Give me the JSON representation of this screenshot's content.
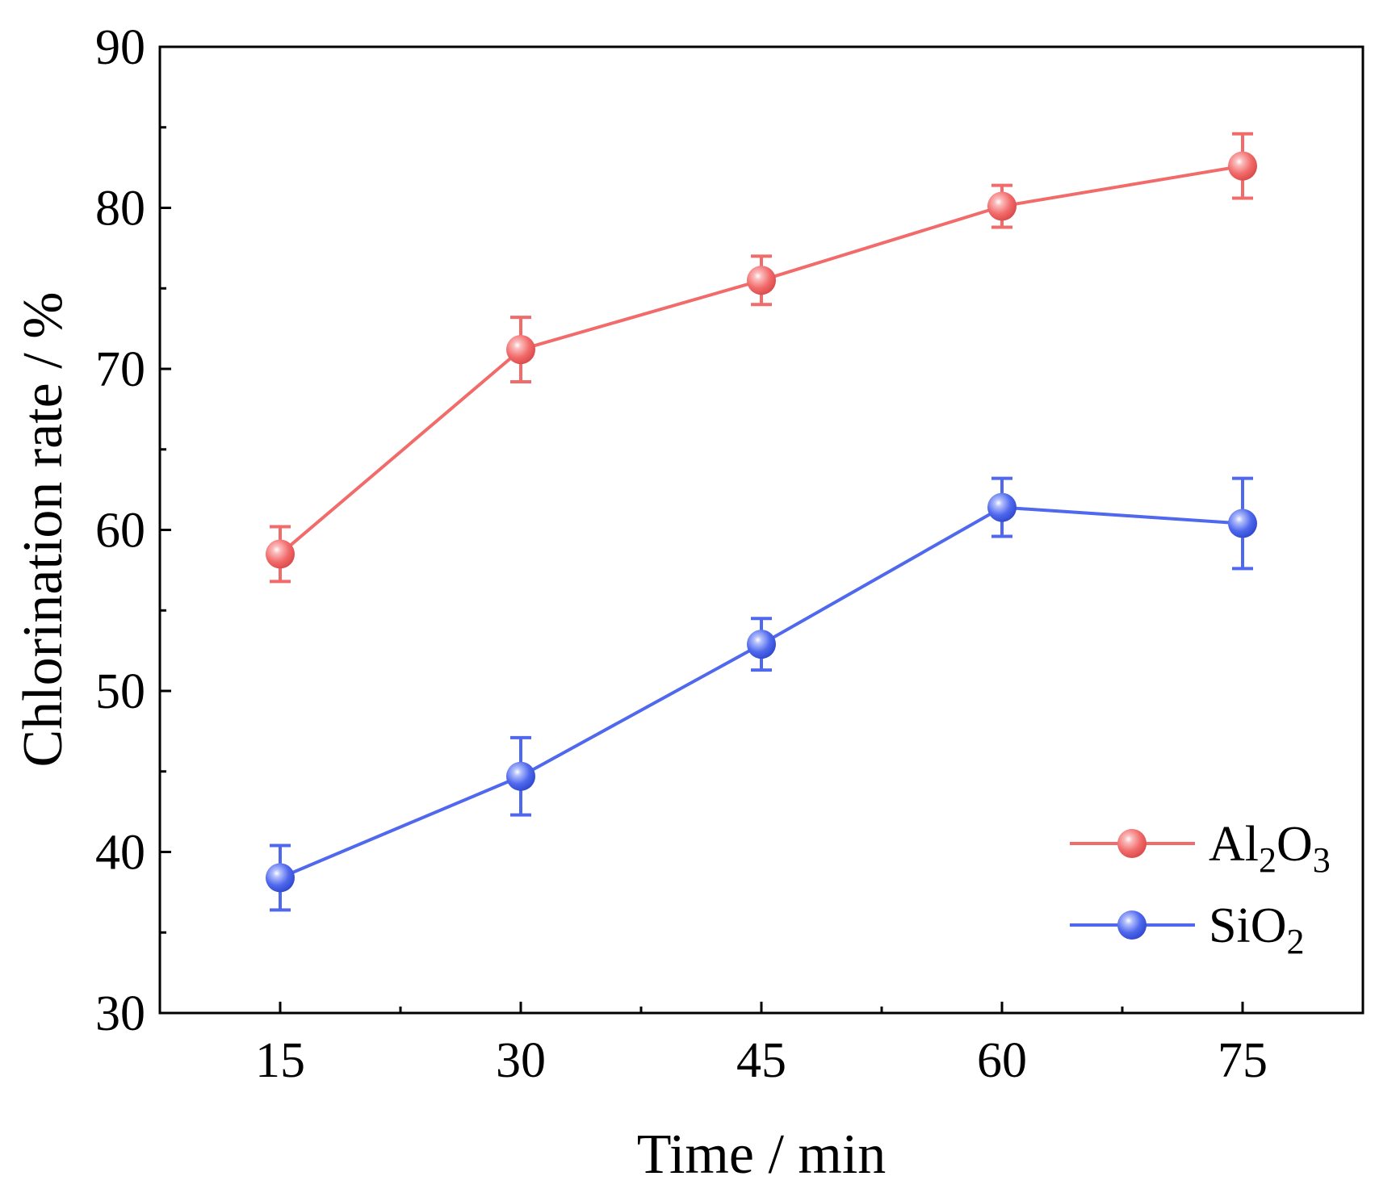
{
  "chart_data": {
    "type": "line",
    "title": "",
    "xlabel": "Time / min",
    "ylabel": "Chlorination rate / %",
    "x": [
      15,
      30,
      45,
      60,
      75
    ],
    "x_tick_labels": [
      "15",
      "30",
      "45",
      "60",
      "75"
    ],
    "xlim": [
      7.5,
      82.5
    ],
    "ylim": [
      30,
      90
    ],
    "y_ticks": [
      30,
      40,
      50,
      60,
      70,
      80,
      90
    ],
    "y_tick_labels": [
      "30",
      "40",
      "50",
      "60",
      "70",
      "80",
      "90"
    ],
    "grid": false,
    "legend_position": "bottom-right",
    "series": [
      {
        "name": "Al2O3",
        "legend_main": "Al",
        "legend_sub1": "2",
        "legend_mid": "O",
        "legend_sub2": "3",
        "color": "#f26b6b",
        "values": [
          58.5,
          71.2,
          75.5,
          80.1,
          82.6
        ],
        "errors": [
          1.7,
          2.0,
          1.5,
          1.3,
          2.0
        ]
      },
      {
        "name": "SiO2",
        "legend_main": "SiO",
        "legend_sub1": "2",
        "color": "#4f68ee",
        "values": [
          38.4,
          44.7,
          52.9,
          61.4,
          60.4
        ],
        "errors": [
          2.0,
          2.4,
          1.6,
          1.8,
          2.8
        ]
      }
    ]
  }
}
